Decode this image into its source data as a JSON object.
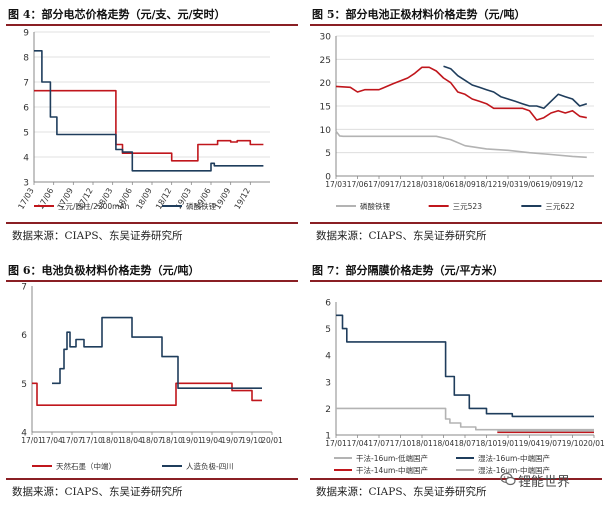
{
  "colors": {
    "red": "#c0161c",
    "navy": "#1f3d5c",
    "gray": "#b3b3b3",
    "rule": "#8a1f24",
    "grid": "#d9d9d9",
    "axis": "#888888"
  },
  "panels": [
    {
      "title": "图 4：部分电芯价格走势（元/支、元/安时）",
      "source": "数据来源：CIAPS、东吴证券研究所"
    },
    {
      "title": "图 5：部分电池正极材料价格走势（元/吨）",
      "source": "数据来源：CIAPS、东吴证券研究所"
    },
    {
      "title": "图 6：电池负极材料价格走势（元/吨）",
      "source": "数据来源：CIAPS、东吴证券研究所"
    },
    {
      "title": "图 7：部分隔膜价格走势（元/平方米）",
      "source": "数据来源：CIAPS、东吴证券研究所"
    }
  ],
  "watermark": "锂能世界",
  "chart_data": [
    {
      "type": "line",
      "title": "部分电芯价格走势（元/支、元/安时）",
      "ylim": [
        3,
        9
      ],
      "yticks": [
        3,
        4,
        5,
        6,
        7,
        8,
        9
      ],
      "xlim": [
        0,
        36
      ],
      "xtick_pos": [
        0,
        3,
        6,
        9,
        12,
        15,
        18,
        21,
        24,
        27,
        30,
        33
      ],
      "xtick_labels": [
        "17/03",
        "17/06",
        "17/09",
        "17/12",
        "18/03",
        "18/06",
        "18/09",
        "18/12",
        "19/03",
        "19/06",
        "19/09",
        "19/12"
      ],
      "xtick_rot": -60,
      "gridlines": "y",
      "series": [
        {
          "name": "三元/圆柱/2200mAh",
          "color": "red",
          "x": [
            0,
            12.5,
            12.5,
            13.5,
            13.5,
            21,
            21,
            25,
            25,
            28,
            28,
            30,
            30,
            31,
            31,
            33,
            33,
            35
          ],
          "y": [
            6.65,
            6.65,
            4.5,
            4.5,
            4.15,
            4.15,
            3.85,
            3.85,
            4.5,
            4.5,
            4.65,
            4.65,
            4.6,
            4.6,
            4.65,
            4.65,
            4.5,
            4.5
          ]
        },
        {
          "name": "磷酸铁锂",
          "color": "navy",
          "x": [
            0,
            1.2,
            1.2,
            2.5,
            2.5,
            3.5,
            3.5,
            12.5,
            12.5,
            13.5,
            13.5,
            15,
            15,
            27,
            27,
            27.5,
            27.5,
            35
          ],
          "y": [
            8.25,
            8.25,
            7.0,
            7.0,
            5.6,
            5.6,
            4.9,
            4.9,
            4.3,
            4.3,
            4.2,
            4.2,
            3.45,
            3.45,
            3.75,
            3.75,
            3.65,
            3.65
          ]
        }
      ]
    },
    {
      "type": "line",
      "title": "部分电池正极材料价格走势（元/吨）",
      "ylim": [
        0,
        30
      ],
      "yticks": [
        0,
        5,
        10,
        15,
        20,
        25,
        30
      ],
      "xlim": [
        0,
        36
      ],
      "xtick_pos": [
        0,
        3,
        6,
        9,
        12,
        15,
        18,
        21,
        24,
        27,
        30,
        33
      ],
      "xtick_labels": [
        "17/03",
        "17/06",
        "17/09",
        "17/12",
        "18/03",
        "18/06",
        "18/09",
        "18/12",
        "19/03",
        "19/06",
        "19/09",
        "19/12"
      ],
      "xtick_rot": 0,
      "gridlines": "y",
      "series": [
        {
          "name": "磷酸铁锂",
          "color": "gray",
          "x": [
            0,
            0.5,
            1,
            2,
            4,
            6,
            10,
            14,
            16,
            18,
            21,
            24,
            27,
            30,
            33,
            35
          ],
          "y": [
            9.6,
            8.6,
            8.5,
            8.5,
            8.5,
            8.5,
            8.5,
            8.5,
            7.8,
            6.5,
            5.8,
            5.5,
            5.0,
            4.6,
            4.2,
            4.0
          ]
        },
        {
          "name": "三元523",
          "color": "red",
          "x": [
            0,
            2,
            3,
            4,
            6,
            8,
            10,
            11,
            12,
            13,
            14,
            15,
            16,
            17,
            18,
            19,
            20,
            21,
            22,
            24,
            26,
            27,
            28,
            29,
            30,
            31,
            32,
            33,
            34,
            35
          ],
          "y": [
            19.2,
            19.0,
            18,
            18.5,
            18.5,
            19.8,
            21,
            22,
            23.3,
            23.3,
            22.5,
            21,
            20,
            18,
            17.5,
            16.5,
            16,
            15.5,
            14.5,
            14.5,
            14.5,
            14,
            12,
            12.5,
            13.5,
            14,
            13.5,
            14,
            12.8,
            12.5
          ]
        },
        {
          "name": "三元622",
          "color": "navy",
          "x": [
            15,
            16,
            17,
            18,
            19,
            20,
            21,
            22,
            23,
            24,
            25,
            26,
            27,
            28,
            29,
            30,
            31,
            32,
            33,
            34,
            35
          ],
          "y": [
            23.5,
            23.0,
            21.5,
            20.5,
            19.5,
            19,
            18.5,
            18,
            17,
            16.5,
            16,
            15.5,
            15,
            15,
            14.5,
            16,
            17.5,
            17,
            16.5,
            15,
            15.5
          ]
        }
      ]
    },
    {
      "type": "line",
      "title": "电池负极材料价格走势（元/吨）",
      "ylim": [
        4,
        7
      ],
      "yticks": [
        4,
        5,
        6,
        7
      ],
      "xlim": [
        0,
        12
      ],
      "xtick_pos": [
        0,
        1,
        2,
        3,
        4,
        5,
        6,
        7,
        8,
        9,
        10,
        11,
        12
      ],
      "xtick_labels": [
        "17/01",
        "17/04",
        "17/07",
        "17/10",
        "18/01",
        "18/04",
        "18/07",
        "18/10",
        "19/01",
        "19/04",
        "19/07",
        "19/10",
        "20/01"
      ],
      "xtick_rot": 0,
      "gridlines": "none",
      "series": [
        {
          "name": "天然石墨（中端）",
          "color": "red",
          "x": [
            0,
            0.25,
            0.25,
            7.2,
            7.2,
            10,
            10,
            11,
            11,
            11.5
          ],
          "y": [
            5.0,
            5.0,
            4.55,
            4.55,
            5.0,
            5.0,
            4.85,
            4.85,
            4.65,
            4.65
          ]
        },
        {
          "name": "人造负极-四川",
          "color": "navy",
          "x": [
            1,
            1.4,
            1.4,
            1.6,
            1.6,
            1.75,
            1.75,
            1.9,
            1.9,
            2.2,
            2.2,
            2.6,
            2.6,
            3.5,
            3.5,
            5,
            5,
            6.5,
            6.5,
            7.3,
            7.3,
            11.5
          ],
          "y": [
            5.0,
            5.0,
            5.3,
            5.3,
            5.7,
            5.7,
            6.05,
            6.05,
            5.75,
            5.75,
            5.9,
            5.9,
            5.75,
            5.75,
            6.35,
            6.35,
            5.95,
            5.95,
            5.55,
            5.55,
            4.9,
            4.9
          ]
        }
      ]
    },
    {
      "type": "line",
      "title": "部分隔膜价格走势（元/平方米）",
      "ylim": [
        1,
        6
      ],
      "yticks": [
        1,
        2,
        3,
        4,
        5,
        6
      ],
      "xlim": [
        0,
        12
      ],
      "xtick_pos": [
        0,
        1,
        2,
        3,
        4,
        5,
        6,
        7,
        8,
        9,
        10,
        11,
        12
      ],
      "xtick_labels": [
        "17/01",
        "17/04",
        "17/07",
        "17/10",
        "18/01",
        "18/04",
        "18/07",
        "18/10",
        "19/01",
        "19/04",
        "19/07",
        "19/10",
        "20/01"
      ],
      "xtick_rot": 0,
      "gridlines": "none",
      "series": [
        {
          "name": "干法-16um-低端国产",
          "color": "gray",
          "x": [
            0,
            5.1,
            5.1,
            5.3,
            5.3,
            5.8,
            5.8,
            6.5,
            6.5,
            12
          ],
          "y": [
            2.0,
            2.0,
            1.6,
            1.6,
            1.45,
            1.45,
            1.3,
            1.3,
            1.2,
            1.2
          ]
        },
        {
          "name": "湿法-16um-中端国产",
          "color": "navy",
          "x": [
            0,
            0.3,
            0.3,
            0.5,
            0.5,
            5.1,
            5.1,
            5.5,
            5.5,
            6.2,
            6.2,
            7,
            7,
            8.2,
            8.2,
            12
          ],
          "y": [
            5.5,
            5.5,
            5.0,
            5.0,
            4.5,
            4.5,
            3.2,
            3.2,
            2.5,
            2.5,
            2.0,
            2.0,
            1.8,
            1.8,
            1.7,
            1.7
          ]
        },
        {
          "name": "干法-14um-中端国产",
          "color": "red",
          "x": [
            7.5,
            12
          ],
          "y": [
            1.1,
            1.1
          ]
        },
        {
          "name": "湿法-16um-中端国产",
          "color": "gray",
          "x": [
            7.5,
            12
          ],
          "y": [
            1.15,
            1.15
          ]
        }
      ]
    }
  ]
}
